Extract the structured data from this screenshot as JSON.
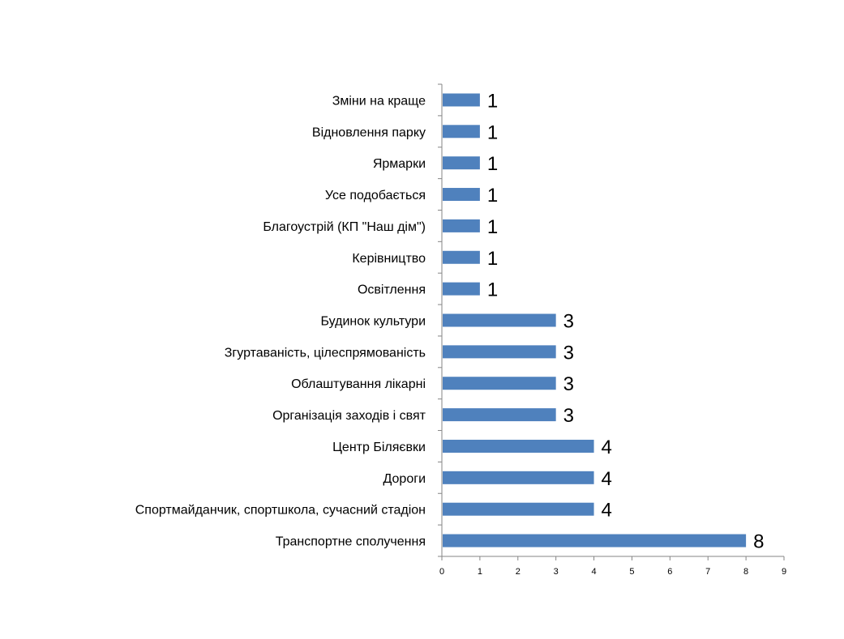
{
  "chart_data": {
    "type": "bar",
    "orientation": "horizontal",
    "categories": [
      "Зміни на краще",
      "Відновлення парку",
      "Ярмарки",
      "Усе подобається",
      "Благоустрій (КП \"Наш дім\")",
      "Керівництво ",
      "Освітлення",
      "Будинок культури",
      "Згуртаваність, цілеспрямованість",
      "Облаштування лікарні",
      "Організація заходів і свят",
      "Центр Біляєвки",
      "Дороги",
      "Спортмайданчик, спортшкола, сучасний стадіон",
      "Транспортне сполучення"
    ],
    "values": [
      1,
      1,
      1,
      1,
      1,
      1,
      1,
      3,
      3,
      3,
      3,
      4,
      4,
      4,
      8
    ],
    "data_labels": [
      "1",
      "1",
      "1",
      "1",
      "1",
      "1",
      "1",
      "3",
      "3",
      "3",
      "3",
      "4",
      "4",
      "4",
      "8"
    ],
    "xlim": [
      0,
      9
    ],
    "xticks": [
      "0",
      "1",
      "2",
      "3",
      "4",
      "5",
      "6",
      "7",
      "8",
      "9"
    ],
    "title": "",
    "xlabel": "",
    "ylabel": "",
    "grid": false,
    "legend": "none",
    "bar_color": "#4F81BD",
    "axis_color": "#868686"
  }
}
